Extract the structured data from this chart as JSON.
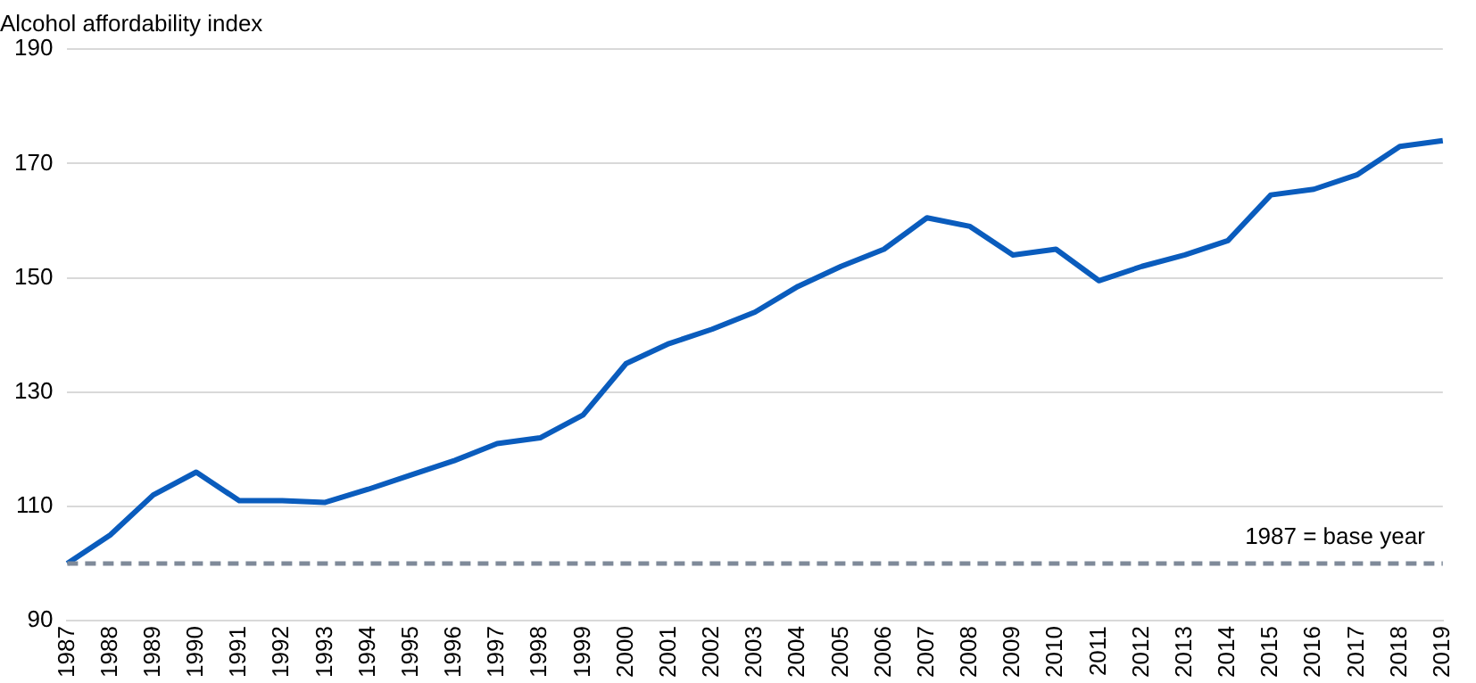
{
  "chart_data": {
    "type": "line",
    "title": "Alcohol affordability index",
    "categories": [
      "1987",
      "1988",
      "1989",
      "1990",
      "1991",
      "1992",
      "1993",
      "1994",
      "1995",
      "1996",
      "1997",
      "1998",
      "1999",
      "2000",
      "2001",
      "2002",
      "2003",
      "2004",
      "2005",
      "2006",
      "2007",
      "2008",
      "2009",
      "2010",
      "2011",
      "2012",
      "2013",
      "2014",
      "2015",
      "2016",
      "2017",
      "2018",
      "2019"
    ],
    "series": [
      {
        "color": "#0a5cbd",
        "values": [
          100,
          105,
          112,
          116,
          111,
          111,
          110.7,
          113,
          115.5,
          118,
          121,
          122,
          126,
          135,
          138.5,
          141,
          144,
          148.5,
          152,
          155,
          160.5,
          159,
          154,
          155,
          149.5,
          152,
          154,
          156.5,
          164.5,
          165.5,
          168,
          173,
          174
        ]
      }
    ],
    "ylim": [
      90,
      190
    ],
    "yticks": [
      90,
      110,
      130,
      150,
      170,
      190
    ],
    "grid": "y",
    "legend": false,
    "marker": "none",
    "line_style": "solid",
    "ref_lines": [
      {
        "axis": "y",
        "value": 100,
        "label": "1987 = base year",
        "color": "#7f8a99",
        "line_style": "dashed"
      }
    ]
  }
}
